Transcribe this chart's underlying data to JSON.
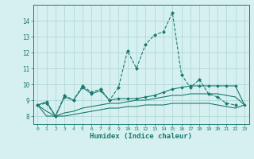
{
  "x": [
    0,
    1,
    2,
    3,
    4,
    5,
    6,
    7,
    8,
    9,
    10,
    11,
    12,
    13,
    14,
    15,
    16,
    17,
    18,
    19,
    20,
    21,
    22,
    23
  ],
  "line1": [
    8.7,
    8.8,
    8.0,
    9.3,
    9.0,
    9.9,
    9.5,
    9.7,
    9.0,
    9.8,
    12.1,
    11.0,
    12.5,
    13.1,
    13.3,
    14.5,
    10.6,
    9.8,
    10.3,
    9.4,
    9.2,
    8.8,
    8.7,
    null
  ],
  "line2": [
    8.7,
    8.9,
    8.0,
    9.2,
    9.0,
    9.8,
    9.4,
    9.6,
    9.0,
    9.1,
    9.1,
    9.1,
    9.2,
    9.3,
    9.5,
    9.7,
    9.8,
    9.9,
    9.9,
    9.9,
    9.9,
    9.9,
    9.9,
    8.7
  ],
  "line3": [
    8.7,
    8.3,
    8.0,
    8.2,
    8.3,
    8.5,
    8.6,
    8.7,
    8.8,
    8.8,
    8.9,
    9.0,
    9.0,
    9.1,
    9.2,
    9.3,
    9.3,
    9.4,
    9.4,
    9.4,
    9.4,
    9.3,
    9.2,
    8.7
  ],
  "line4": [
    8.7,
    8.0,
    8.0,
    8.0,
    8.1,
    8.2,
    8.3,
    8.4,
    8.5,
    8.5,
    8.6,
    8.6,
    8.7,
    8.7,
    8.7,
    8.8,
    8.8,
    8.8,
    8.8,
    8.8,
    8.7,
    8.6,
    8.5,
    8.7
  ],
  "line_color": "#1a7a6e",
  "bg_color": "#d6f0f0",
  "grid_color": "#b0d8d8",
  "xlabel": "Humidex (Indice chaleur)",
  "ylim": [
    7.5,
    15.0
  ],
  "xlim": [
    -0.5,
    23.5
  ],
  "yticks": [
    8,
    9,
    10,
    11,
    12,
    13,
    14
  ],
  "xticks": [
    0,
    1,
    2,
    3,
    4,
    5,
    6,
    7,
    8,
    9,
    10,
    11,
    12,
    13,
    14,
    15,
    16,
    17,
    18,
    19,
    20,
    21,
    22,
    23
  ]
}
